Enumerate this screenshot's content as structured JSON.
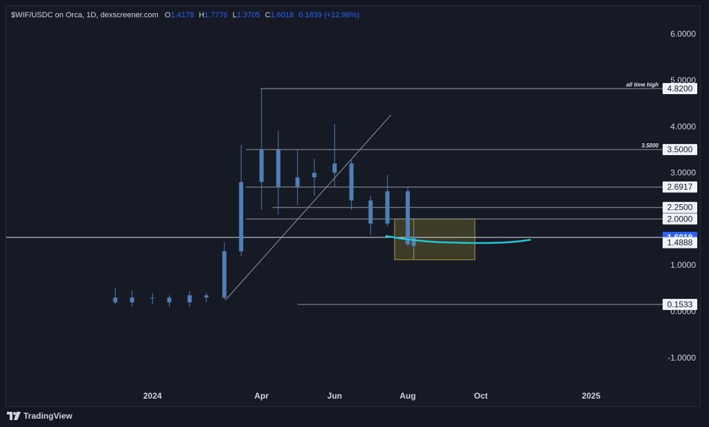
{
  "header": {
    "symbol": "$WIF/USDC on Orca, 1D, dexscreener.com",
    "ohlc": [
      {
        "key": "O",
        "value": "1.4178"
      },
      {
        "key": "H",
        "value": "1.7776"
      },
      {
        "key": "L",
        "value": "1.3705"
      },
      {
        "key": "C",
        "value": "1.6018"
      }
    ],
    "change": "0.1839 (+12.98%)"
  },
  "footer": {
    "brand": "TradingView",
    "logo_icon": "tradingview-logo-icon"
  },
  "colors": {
    "background": "#161a25",
    "axis_text": "#d1d4dc",
    "candles": "#4f7fb6",
    "current_price": "#2962ff",
    "curve": "#26c6da",
    "zone_fill": "#5c5a2a",
    "zone_stroke": "#a89a4a",
    "level_lines": "#9598a1"
  },
  "chart_data": {
    "type": "candlestick",
    "ylim": [
      -1.6,
      6.6
    ],
    "y_ticks": [
      "6.0000",
      "5.0000",
      "4.0000",
      "3.0000",
      "2.0000",
      "1.0000",
      "0.0000",
      "-1.0000"
    ],
    "y_tick_values": [
      6,
      5,
      4,
      3,
      2,
      1,
      0,
      -1
    ],
    "x_ticks": [
      "2024",
      "Apr",
      "Jun",
      "Aug",
      "Oct",
      "2025"
    ],
    "x_tick_dates": [
      "2024-01-01",
      "2024-04-01",
      "2024-06-01",
      "2024-08-01",
      "2024-10-01",
      "2025-01-01"
    ],
    "x_range": [
      "2023-09-01",
      "2025-02-25"
    ],
    "price_labels": [
      {
        "value": 4.82,
        "text": "4.8200"
      },
      {
        "value": 3.5,
        "text": "3.5000"
      },
      {
        "value": 2.6917,
        "text": "2.6917"
      },
      {
        "value": 2.25,
        "text": "2.2500"
      },
      {
        "value": 2.0,
        "text": "2.0000"
      },
      {
        "value": 1.6018,
        "text": "1.6018",
        "current": true
      },
      {
        "value": 1.4888,
        "text": "1.4888"
      },
      {
        "value": 0.1533,
        "text": "0.1533"
      }
    ],
    "levels": [
      {
        "value": 4.82,
        "from": "2024-03-31",
        "label": "all time high"
      },
      {
        "value": 3.5,
        "from": "2024-03-19",
        "label": "3.5000"
      },
      {
        "value": 2.6917,
        "from": "2024-03-19",
        "label": ""
      },
      {
        "value": 2.25,
        "from": "2024-04-10",
        "label": ""
      },
      {
        "value": 2.0,
        "from": "2024-03-19",
        "label": ""
      },
      {
        "value": 0.1533,
        "from": "2024-05-01",
        "label": ""
      }
    ],
    "current_price": 1.6018,
    "trendline": {
      "from": [
        "2024-03-02",
        0.25
      ],
      "to": [
        "2024-07-18",
        4.25
      ]
    },
    "zone": {
      "from": [
        "2024-07-21",
        2.0
      ],
      "to": [
        "2024-09-26",
        1.12
      ]
    },
    "zone_divider_date": "2024-08-06",
    "curve": [
      [
        "2024-07-14",
        1.63
      ],
      [
        "2024-07-28",
        1.57
      ],
      [
        "2024-08-11",
        1.53
      ],
      [
        "2024-08-25",
        1.5
      ],
      [
        "2024-09-08",
        1.49
      ],
      [
        "2024-09-22",
        1.48
      ],
      [
        "2024-10-06",
        1.48
      ],
      [
        "2024-10-20",
        1.49
      ],
      [
        "2024-11-03",
        1.52
      ],
      [
        "2024-11-11",
        1.55
      ]
    ],
    "candles": [
      [
        "2023-12-01",
        0.3,
        0.5,
        0.15,
        0.2
      ],
      [
        "2023-12-15",
        0.2,
        0.45,
        0.1,
        0.3
      ],
      [
        "2024-01-01",
        0.3,
        0.4,
        0.15,
        0.3
      ],
      [
        "2024-01-15",
        0.3,
        0.35,
        0.1,
        0.2
      ],
      [
        "2024-02-01",
        0.2,
        0.45,
        0.1,
        0.35
      ],
      [
        "2024-02-15",
        0.35,
        0.4,
        0.2,
        0.3
      ],
      [
        "2024-03-01",
        0.3,
        1.5,
        0.25,
        1.3
      ],
      [
        "2024-03-15",
        1.3,
        3.6,
        1.2,
        2.8
      ],
      [
        "2024-04-01",
        2.8,
        4.82,
        2.2,
        3.5
      ],
      [
        "2024-04-15",
        3.5,
        3.9,
        2.1,
        2.7
      ],
      [
        "2024-05-01",
        2.7,
        3.5,
        2.3,
        2.9
      ],
      [
        "2024-05-15",
        2.9,
        3.3,
        2.5,
        3.0
      ],
      [
        "2024-06-01",
        3.0,
        4.05,
        2.7,
        3.2
      ],
      [
        "2024-06-15",
        3.2,
        3.3,
        2.2,
        2.4
      ],
      [
        "2024-07-01",
        2.4,
        2.5,
        1.65,
        1.9
      ],
      [
        "2024-07-15",
        1.9,
        2.95,
        1.85,
        2.6
      ],
      [
        "2024-08-01",
        2.6,
        2.7,
        1.4,
        1.45
      ],
      [
        "2024-08-06",
        1.4178,
        1.7776,
        1.3705,
        1.6018
      ]
    ]
  }
}
